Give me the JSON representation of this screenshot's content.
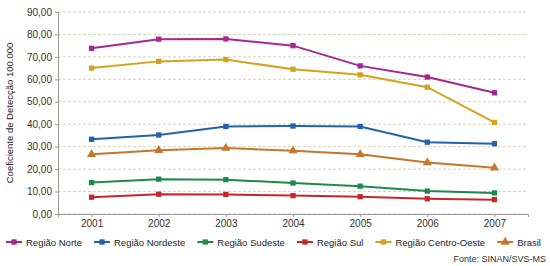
{
  "chart_data": {
    "type": "line",
    "y_label": "Coeficiente de Detecção 100.000",
    "annotations": [
      "Fonte: SINAN/SVS-MS"
    ],
    "categories": [
      "2001",
      "2002",
      "2003",
      "2004",
      "2005",
      "2006",
      "2007"
    ],
    "series": [
      {
        "name": "Região Norte",
        "color": "#a3288f",
        "marker": "square",
        "values": [
          73.8,
          77.9,
          78.0,
          75.0,
          66.0,
          61.0,
          54.0
        ]
      },
      {
        "name": "Região Nordeste",
        "color": "#2163a8",
        "marker": "square",
        "values": [
          33.3,
          35.2,
          39.0,
          39.2,
          39.0,
          32.0,
          31.3
        ]
      },
      {
        "name": "Região Sudeste",
        "color": "#1d8a4c",
        "marker": "square",
        "values": [
          14.0,
          15.5,
          15.3,
          13.8,
          12.4,
          10.2,
          9.4
        ]
      },
      {
        "name": "Região Sul",
        "color": "#c3282c",
        "marker": "square",
        "values": [
          7.5,
          8.8,
          8.7,
          8.2,
          7.7,
          6.8,
          6.4
        ]
      },
      {
        "name": "Região Centro-Oeste",
        "color": "#d4a21c",
        "marker": "square",
        "values": [
          65.0,
          68.0,
          68.8,
          64.5,
          62.0,
          56.5,
          40.8
        ]
      },
      {
        "name": "Brasil",
        "color": "#c8772a",
        "marker": "triangle",
        "values": [
          26.6,
          28.4,
          29.4,
          28.2,
          26.6,
          22.9,
          20.6
        ]
      }
    ],
    "ylim": [
      0,
      90
    ],
    "yticks": [
      {
        "value": 0,
        "label": "0,00"
      },
      {
        "value": 10,
        "label": "10,00"
      },
      {
        "value": 20,
        "label": "20,00"
      },
      {
        "value": 30,
        "label": "30,00"
      },
      {
        "value": 40,
        "label": "40,00"
      },
      {
        "value": 50,
        "label": "50,00"
      },
      {
        "value": 60,
        "label": "60,00"
      },
      {
        "value": 70,
        "label": "70,00"
      },
      {
        "value": 80,
        "label": "80,00"
      },
      {
        "value": 90,
        "label": "90,00"
      }
    ],
    "grid": true,
    "legend": "bottom"
  }
}
